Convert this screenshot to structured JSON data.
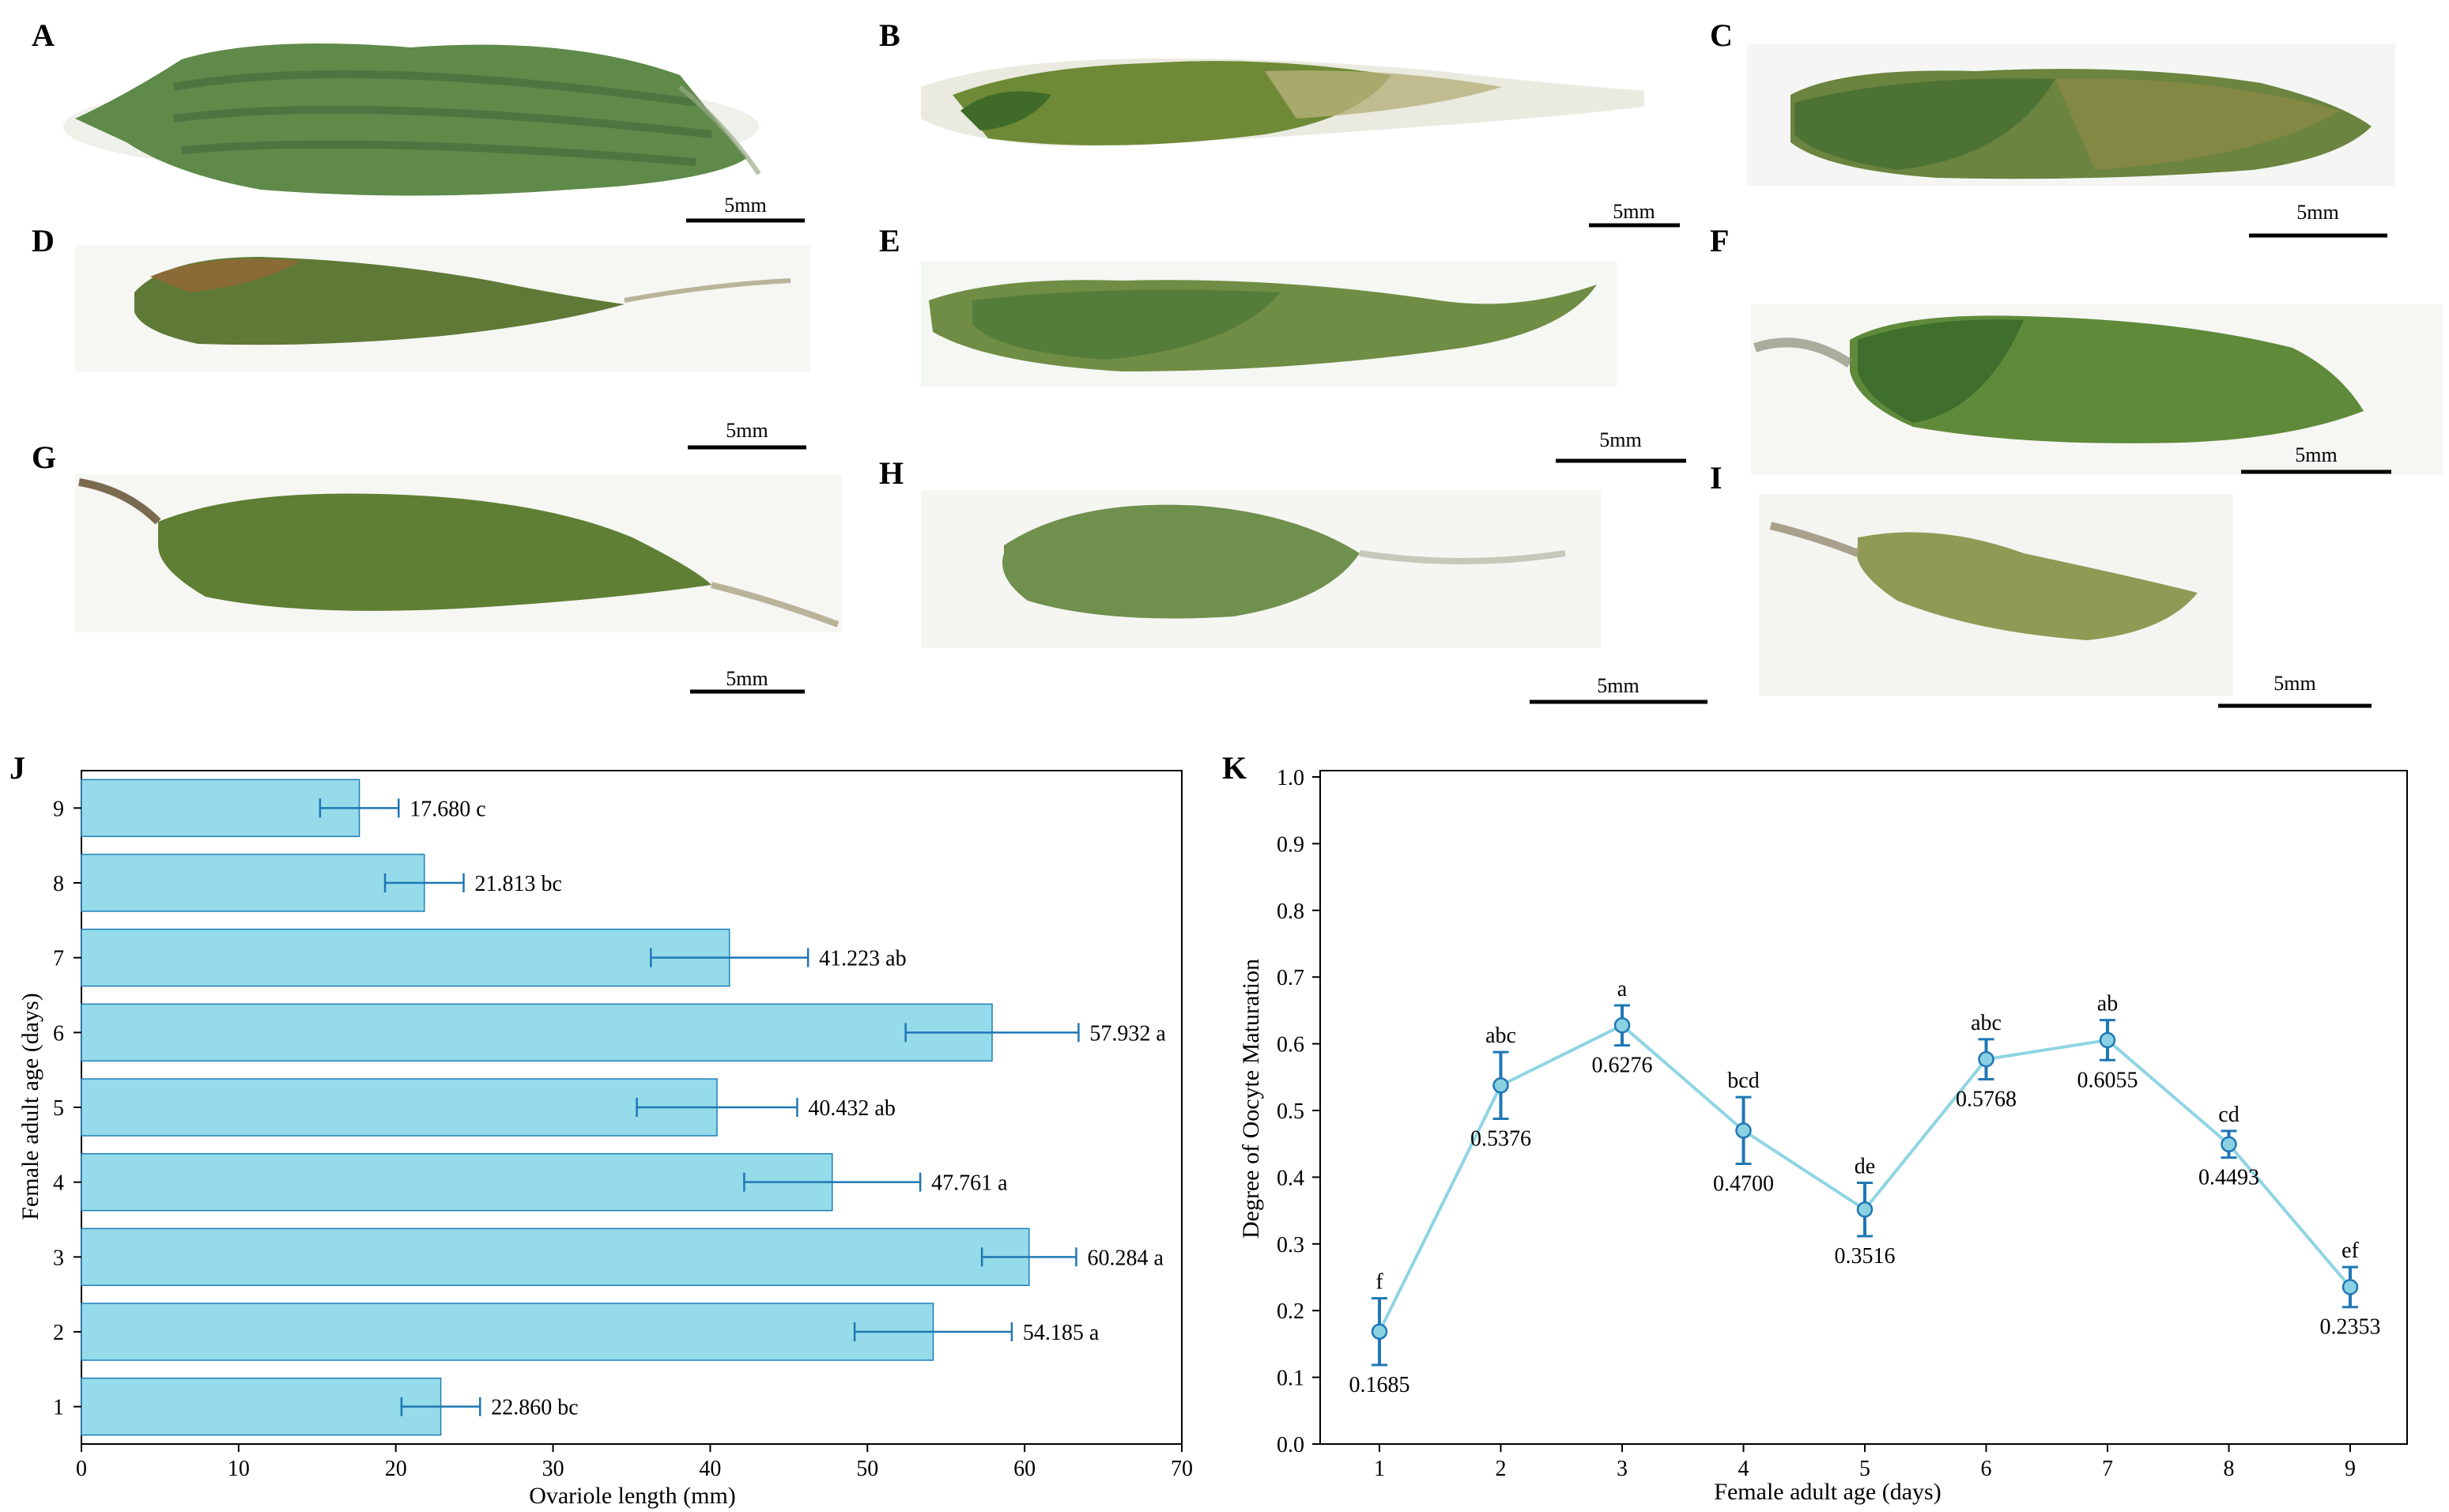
{
  "colors": {
    "bar_fill": "#95dbe9",
    "bar_stroke": "#1e7fb8",
    "error": "#1f77b4",
    "line": "#8fd4e3",
    "marker_fill": "#8ad1e2",
    "ovary_dark": "#4d7a2e",
    "ovary_mid": "#6a8c3a",
    "ovary_light": "#a9b26a",
    "tissue": "#d9d9cf"
  },
  "photos": [
    {
      "label": "A",
      "scale_label": "5mm"
    },
    {
      "label": "B",
      "scale_label": "5mm"
    },
    {
      "label": "C",
      "scale_label": "5mm"
    },
    {
      "label": "D",
      "scale_label": "5mm"
    },
    {
      "label": "E",
      "scale_label": "5mm"
    },
    {
      "label": "F",
      "scale_label": "5mm"
    },
    {
      "label": "G",
      "scale_label": "5mm"
    },
    {
      "label": "H",
      "scale_label": "5mm"
    },
    {
      "label": "I",
      "scale_label": "5mm"
    }
  ],
  "chart_data": [
    {
      "panel": "J",
      "type": "bar",
      "orientation": "horizontal",
      "categories": [
        "1",
        "2",
        "3",
        "4",
        "5",
        "6",
        "7",
        "8",
        "9"
      ],
      "values": [
        22.86,
        54.185,
        60.284,
        47.761,
        40.432,
        57.932,
        41.223,
        21.813,
        17.68
      ],
      "errors": [
        2.5,
        5.0,
        3.0,
        5.6,
        5.1,
        5.5,
        5.0,
        2.5,
        2.5
      ],
      "value_labels": [
        "22.860",
        "54.185",
        "60.284",
        "47.761",
        "40.432",
        "57.932",
        "41.223",
        "21.813",
        "17.680"
      ],
      "letters": [
        "bc",
        "a",
        "a",
        "a",
        "ab",
        "a",
        "ab",
        "bc",
        "c"
      ],
      "xlabel": "Ovariole length (mm)",
      "ylabel": "Female adult age (days)",
      "xlim": [
        0,
        70
      ],
      "xticks": [
        "0",
        "10",
        "20",
        "30",
        "40",
        "50",
        "60",
        "70"
      ]
    },
    {
      "panel": "K",
      "type": "line",
      "x": [
        "1",
        "2",
        "3",
        "4",
        "5",
        "6",
        "7",
        "8",
        "9"
      ],
      "values": [
        0.1685,
        0.5376,
        0.6276,
        0.47,
        0.3516,
        0.5768,
        0.6055,
        0.4493,
        0.2353
      ],
      "errors": [
        0.05,
        0.05,
        0.03,
        0.05,
        0.04,
        0.03,
        0.03,
        0.02,
        0.03
      ],
      "value_labels": [
        "0.1685",
        "0.5376",
        "0.6276",
        "0.4700",
        "0.3516",
        "0.5768",
        "0.6055",
        "0.4493",
        "0.2353"
      ],
      "letters": [
        "f",
        "abc",
        "a",
        "bcd",
        "de",
        "abc",
        "ab",
        "cd",
        "ef"
      ],
      "xlabel": "Female adult age (days)",
      "ylabel": "Degree of Oocyte Maturation",
      "ylim": [
        0.0,
        1.0
      ],
      "yticks": [
        "0.0",
        "0.1",
        "0.2",
        "0.3",
        "0.4",
        "0.5",
        "0.6",
        "0.7",
        "0.8",
        "0.9",
        "1.0"
      ]
    }
  ]
}
